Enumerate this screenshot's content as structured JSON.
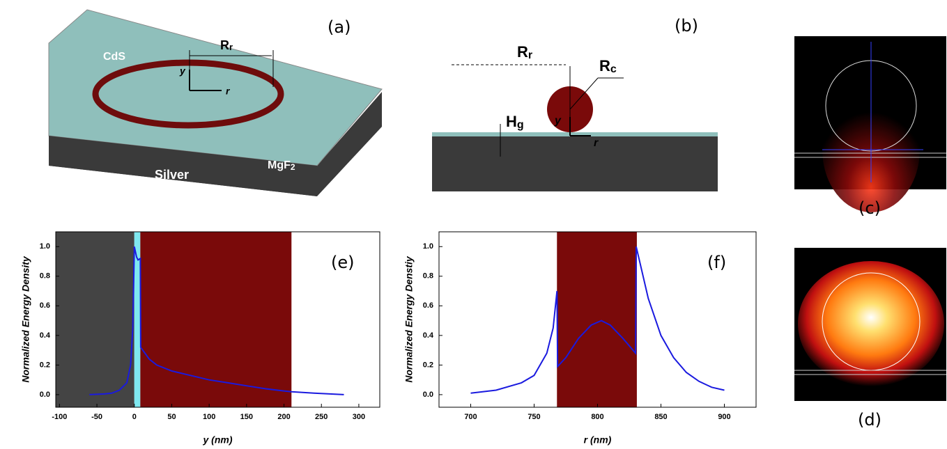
{
  "panel_a": {
    "label": "(a)",
    "ring": "CdS",
    "radius": {
      "main": "R",
      "sub": "r"
    },
    "axis_y": "y",
    "axis_r": "r",
    "substrate": "Silver",
    "spacer": {
      "main": "MgF",
      "sub": "2"
    }
  },
  "panel_b": {
    "label": "(b)",
    "radius": {
      "main": "R",
      "sub": "r"
    },
    "cross_radius": {
      "main": "R",
      "sub": "c"
    },
    "gap": {
      "main": "H",
      "sub": "g"
    },
    "axis_y": "y",
    "axis_r": "r"
  },
  "panel_c": {
    "label": "(c)"
  },
  "panel_d": {
    "label": "(d)"
  },
  "chart_data": [
    {
      "type": "line",
      "panel_label": "(e)",
      "x_label": "y (nm)",
      "y_label": "Normalized Energy Density",
      "xlim": [
        -105,
        328
      ],
      "ylim": [
        -0.085,
        1.1
      ],
      "xticks": [
        -100,
        -50,
        0,
        50,
        100,
        150,
        200,
        250,
        300
      ],
      "yticks": [
        {
          "value": 0,
          "label": "0.0"
        },
        {
          "value": 0.2,
          "label": "0.2"
        },
        {
          "value": 0.4,
          "label": "0.4"
        },
        {
          "value": 0.6,
          "label": "0.6"
        },
        {
          "value": 0.8,
          "label": "0.8"
        },
        {
          "value": 1,
          "label": "1.0"
        }
      ],
      "bands": [
        {
          "from": -105,
          "to": 0,
          "color": "#444444"
        },
        {
          "from": 0,
          "to": 8,
          "color": "#7fe8f0"
        },
        {
          "from": 8,
          "to": 210,
          "color": "#7a0a0a"
        }
      ],
      "x": [
        -60,
        -40,
        -30,
        -20,
        -10,
        -5,
        -2,
        0,
        3,
        5,
        8,
        8.5,
        20,
        30,
        50,
        75,
        100,
        125,
        150,
        175,
        200,
        210,
        240,
        280
      ],
      "series": [
        {
          "color": "#1a1adf",
          "values": [
            0,
            0.005,
            0.01,
            0.03,
            0.08,
            0.2,
            0.45,
            1.0,
            0.93,
            0.91,
            0.92,
            0.32,
            0.24,
            0.2,
            0.16,
            0.13,
            0.1,
            0.08,
            0.06,
            0.04,
            0.025,
            0.02,
            0.01,
            0
          ]
        }
      ]
    },
    {
      "type": "line",
      "panel_label": "(f)",
      "x_label": "r (nm)",
      "y_label": "Normalized Energy Denstiy",
      "xlim": [
        675,
        925
      ],
      "ylim": [
        -0.085,
        1.1
      ],
      "xticks": [
        700,
        750,
        800,
        850,
        900
      ],
      "yticks": [
        {
          "value": 0,
          "label": "0.0"
        },
        {
          "value": 0.2,
          "label": "0.2"
        },
        {
          "value": 0.4,
          "label": "0.4"
        },
        {
          "value": 0.6,
          "label": "0.6"
        },
        {
          "value": 0.8,
          "label": "0.8"
        },
        {
          "value": 1,
          "label": "1.0"
        }
      ],
      "bands": [
        {
          "from": 768,
          "to": 831,
          "color": "#7a0a0a"
        }
      ],
      "x": [
        700,
        720,
        740,
        750,
        760,
        765,
        768,
        768.5,
        775,
        785,
        795,
        803,
        810,
        820,
        830,
        830.5,
        840,
        850,
        860,
        870,
        880,
        890,
        900
      ],
      "series": [
        {
          "color": "#1a1adf",
          "values": [
            0.01,
            0.03,
            0.08,
            0.13,
            0.28,
            0.45,
            0.7,
            0.19,
            0.25,
            0.38,
            0.47,
            0.5,
            0.47,
            0.38,
            0.28,
            1.0,
            0.65,
            0.4,
            0.25,
            0.15,
            0.09,
            0.05,
            0.03
          ]
        }
      ]
    }
  ]
}
